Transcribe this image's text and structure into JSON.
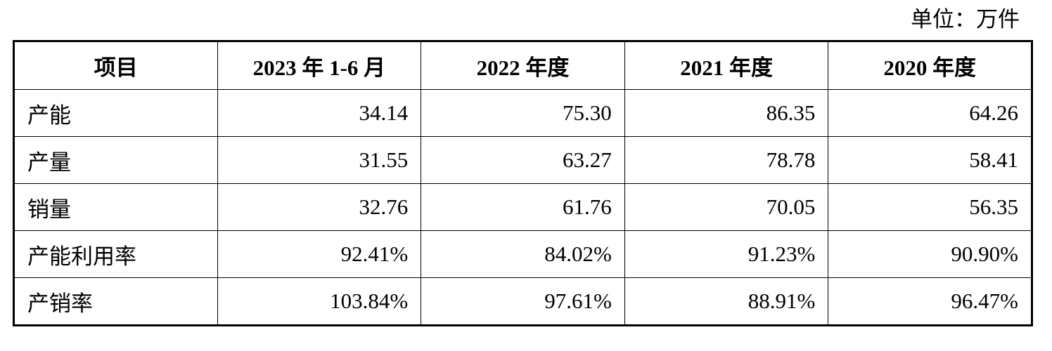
{
  "unit": "单位：万件",
  "table": {
    "header": [
      "项目",
      "2023 年 1-6 月",
      "2022 年度",
      "2021 年度",
      "2020 年度"
    ],
    "rows": [
      [
        "产能",
        "34.14",
        "75.30",
        "86.35",
        "64.26"
      ],
      [
        "产量",
        "31.55",
        "63.27",
        "78.78",
        "58.41"
      ],
      [
        "销量",
        "32.76",
        "61.76",
        "70.05",
        "56.35"
      ],
      [
        "产能利用率",
        "92.41%",
        "84.02%",
        "91.23%",
        "90.90%"
      ],
      [
        "产销率",
        "103.84%",
        "97.61%",
        "88.91%",
        "96.47%"
      ]
    ]
  }
}
